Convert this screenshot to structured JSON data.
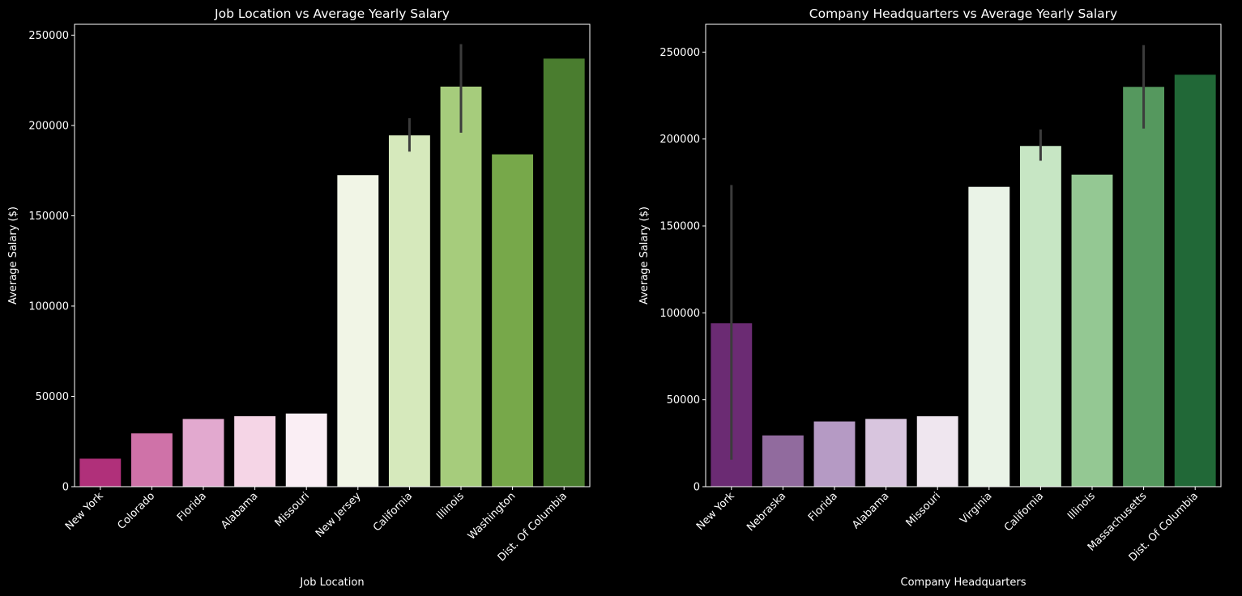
{
  "background": "#000000",
  "text_color": "#ffffff",
  "error_bar_color": "#3c3c3c",
  "chart_data": [
    {
      "type": "bar",
      "title": "Job Location vs Average Yearly Salary",
      "xlabel": "Job Location",
      "ylabel": "Average Salary ($)",
      "ylim": [
        0,
        256000
      ],
      "yticks": [
        0,
        50000,
        100000,
        150000,
        200000,
        250000
      ],
      "categories": [
        "New York",
        "Colorado",
        "Florida",
        "Alabama",
        "Missouri",
        "New Jersey",
        "California",
        "Illinois",
        "Washington",
        "Dist. Of Columbia"
      ],
      "values": [
        15500,
        29500,
        37500,
        39000,
        40500,
        172500,
        194500,
        221500,
        184000,
        237000
      ],
      "error_bars": [
        null,
        null,
        null,
        null,
        null,
        null,
        [
          185500,
          204000
        ],
        [
          196000,
          245000
        ],
        null,
        null
      ],
      "colors": [
        "#b0307a",
        "#cf72a8",
        "#e2a9cf",
        "#f5d5e6",
        "#faeef4",
        "#f1f5e6",
        "#d6e9bc",
        "#a6cc7c",
        "#77a84a",
        "#4a7d2f"
      ],
      "grid": false,
      "x_tick_rotation_deg": 45
    },
    {
      "type": "bar",
      "title": "Company Headquarters vs Average Yearly Salary",
      "xlabel": "Company Headquarters",
      "ylabel": "Average Salary ($)",
      "ylim": [
        0,
        266000
      ],
      "yticks": [
        0,
        50000,
        100000,
        150000,
        200000,
        250000
      ],
      "categories": [
        "New York",
        "Nebraska",
        "Florida",
        "Alabama",
        "Missouri",
        "Virginia",
        "California",
        "Illinois",
        "Massachusetts",
        "Dist. Of Columbia"
      ],
      "values": [
        94000,
        29500,
        37500,
        39000,
        40500,
        172500,
        196000,
        179500,
        230000,
        237000
      ],
      "error_bars": [
        [
          15500,
          173500
        ],
        null,
        null,
        null,
        null,
        null,
        [
          187500,
          205500
        ],
        null,
        [
          206000,
          254000
        ],
        null
      ],
      "colors": [
        "#6b2b73",
        "#916b9e",
        "#b59ac4",
        "#d8c5de",
        "#efe6ef",
        "#eaf3e7",
        "#c7e6c4",
        "#94c893",
        "#55985e",
        "#216837"
      ],
      "grid": false,
      "x_tick_rotation_deg": 45
    }
  ]
}
